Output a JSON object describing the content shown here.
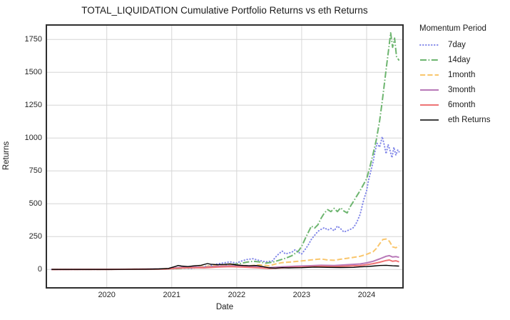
{
  "chart_data": {
    "type": "line",
    "title": "TOTAL_LIQUIDATION Cumulative Portfolio Returns vs eth Returns",
    "xlabel": "Date",
    "ylabel": "Returns",
    "xlim": [
      2019.07,
      2024.56
    ],
    "ylim": [
      -140,
      1860
    ],
    "x_ticks": [
      2020,
      2021,
      2022,
      2023,
      2024
    ],
    "y_ticks": [
      0,
      250,
      500,
      750,
      1000,
      1250,
      1500,
      1750
    ],
    "grid": true,
    "grid_color": "#d6d6d6",
    "spine_color": "#2e2e2e",
    "legend": {
      "title": "Momentum Period",
      "position": "right-outside"
    },
    "series": [
      {
        "name": "7day",
        "color": "#8086e8",
        "style": "dotted",
        "width": 2,
        "points": [
          [
            2019.15,
            0
          ],
          [
            2019.5,
            1
          ],
          [
            2020.0,
            1
          ],
          [
            2020.5,
            2
          ],
          [
            2020.8,
            3
          ],
          [
            2021.0,
            5
          ],
          [
            2021.15,
            12
          ],
          [
            2021.3,
            8
          ],
          [
            2021.45,
            18
          ],
          [
            2021.6,
            30
          ],
          [
            2021.7,
            42
          ],
          [
            2021.8,
            50
          ],
          [
            2021.9,
            58
          ],
          [
            2022.0,
            48
          ],
          [
            2022.05,
            60
          ],
          [
            2022.15,
            75
          ],
          [
            2022.25,
            82
          ],
          [
            2022.35,
            68
          ],
          [
            2022.45,
            58
          ],
          [
            2022.55,
            65
          ],
          [
            2022.6,
            95
          ],
          [
            2022.65,
            120
          ],
          [
            2022.7,
            140
          ],
          [
            2022.75,
            118
          ],
          [
            2022.85,
            132
          ],
          [
            2022.9,
            150
          ],
          [
            2022.95,
            130
          ],
          [
            2023.0,
            118
          ],
          [
            2023.05,
            150
          ],
          [
            2023.1,
            185
          ],
          [
            2023.15,
            230
          ],
          [
            2023.2,
            260
          ],
          [
            2023.25,
            290
          ],
          [
            2023.3,
            305
          ],
          [
            2023.35,
            318
          ],
          [
            2023.4,
            300
          ],
          [
            2023.45,
            312
          ],
          [
            2023.5,
            295
          ],
          [
            2023.55,
            330
          ],
          [
            2023.6,
            310
          ],
          [
            2023.65,
            285
          ],
          [
            2023.7,
            295
          ],
          [
            2023.75,
            305
          ],
          [
            2023.8,
            320
          ],
          [
            2023.85,
            360
          ],
          [
            2023.9,
            420
          ],
          [
            2023.95,
            520
          ],
          [
            2024.0,
            600
          ],
          [
            2024.03,
            680
          ],
          [
            2024.06,
            740
          ],
          [
            2024.1,
            820
          ],
          [
            2024.13,
            900
          ],
          [
            2024.16,
            960
          ],
          [
            2024.2,
            930
          ],
          [
            2024.24,
            1010
          ],
          [
            2024.27,
            950
          ],
          [
            2024.3,
            880
          ],
          [
            2024.33,
            950
          ],
          [
            2024.36,
            905
          ],
          [
            2024.39,
            850
          ],
          [
            2024.42,
            930
          ],
          [
            2024.45,
            870
          ],
          [
            2024.48,
            910
          ],
          [
            2024.5,
            895
          ]
        ]
      },
      {
        "name": "14day",
        "color": "#6db56f",
        "style": "dashdot",
        "width": 2,
        "points": [
          [
            2019.15,
            0
          ],
          [
            2019.5,
            1
          ],
          [
            2020.0,
            1
          ],
          [
            2020.5,
            2
          ],
          [
            2021.0,
            4
          ],
          [
            2021.2,
            10
          ],
          [
            2021.4,
            15
          ],
          [
            2021.6,
            22
          ],
          [
            2021.8,
            30
          ],
          [
            2021.95,
            38
          ],
          [
            2022.05,
            45
          ],
          [
            2022.15,
            55
          ],
          [
            2022.25,
            62
          ],
          [
            2022.35,
            58
          ],
          [
            2022.45,
            48
          ],
          [
            2022.55,
            55
          ],
          [
            2022.65,
            70
          ],
          [
            2022.75,
            85
          ],
          [
            2022.85,
            105
          ],
          [
            2022.95,
            140
          ],
          [
            2023.0,
            175
          ],
          [
            2023.05,
            230
          ],
          [
            2023.1,
            280
          ],
          [
            2023.15,
            330
          ],
          [
            2023.2,
            315
          ],
          [
            2023.25,
            340
          ],
          [
            2023.3,
            390
          ],
          [
            2023.35,
            430
          ],
          [
            2023.4,
            455
          ],
          [
            2023.45,
            440
          ],
          [
            2023.5,
            465
          ],
          [
            2023.55,
            440
          ],
          [
            2023.6,
            470
          ],
          [
            2023.65,
            445
          ],
          [
            2023.7,
            430
          ],
          [
            2023.75,
            480
          ],
          [
            2023.8,
            520
          ],
          [
            2023.85,
            560
          ],
          [
            2023.9,
            600
          ],
          [
            2023.95,
            645
          ],
          [
            2024.0,
            690
          ],
          [
            2024.05,
            780
          ],
          [
            2024.1,
            880
          ],
          [
            2024.15,
            990
          ],
          [
            2024.2,
            1130
          ],
          [
            2024.24,
            1280
          ],
          [
            2024.28,
            1440
          ],
          [
            2024.31,
            1560
          ],
          [
            2024.34,
            1680
          ],
          [
            2024.37,
            1800
          ],
          [
            2024.4,
            1690
          ],
          [
            2024.43,
            1760
          ],
          [
            2024.46,
            1620
          ],
          [
            2024.5,
            1590
          ]
        ]
      },
      {
        "name": "1month",
        "color": "#f9c66d",
        "style": "dashed",
        "width": 2,
        "points": [
          [
            2019.15,
            0
          ],
          [
            2020.0,
            1
          ],
          [
            2020.8,
            3
          ],
          [
            2021.1,
            12
          ],
          [
            2021.3,
            18
          ],
          [
            2021.5,
            22
          ],
          [
            2021.7,
            30
          ],
          [
            2021.9,
            38
          ],
          [
            2022.05,
            32
          ],
          [
            2022.2,
            28
          ],
          [
            2022.35,
            35
          ],
          [
            2022.5,
            28
          ],
          [
            2022.6,
            42
          ],
          [
            2022.7,
            52
          ],
          [
            2022.85,
            58
          ],
          [
            2023.0,
            65
          ],
          [
            2023.1,
            70
          ],
          [
            2023.2,
            76
          ],
          [
            2023.3,
            80
          ],
          [
            2023.4,
            72
          ],
          [
            2023.5,
            70
          ],
          [
            2023.6,
            78
          ],
          [
            2023.7,
            85
          ],
          [
            2023.8,
            92
          ],
          [
            2023.9,
            100
          ],
          [
            2024.0,
            115
          ],
          [
            2024.05,
            125
          ],
          [
            2024.1,
            135
          ],
          [
            2024.15,
            160
          ],
          [
            2024.2,
            195
          ],
          [
            2024.25,
            228
          ],
          [
            2024.3,
            232
          ],
          [
            2024.35,
            215
          ],
          [
            2024.4,
            172
          ],
          [
            2024.45,
            165
          ],
          [
            2024.5,
            182
          ]
        ]
      },
      {
        "name": "3month",
        "color": "#b878b8",
        "style": "solid",
        "width": 2,
        "points": [
          [
            2019.15,
            0
          ],
          [
            2020.0,
            1
          ],
          [
            2020.9,
            4
          ],
          [
            2021.1,
            14
          ],
          [
            2021.3,
            20
          ],
          [
            2021.5,
            16
          ],
          [
            2021.7,
            24
          ],
          [
            2021.9,
            28
          ],
          [
            2022.1,
            24
          ],
          [
            2022.3,
            20
          ],
          [
            2022.5,
            14
          ],
          [
            2022.7,
            20
          ],
          [
            2022.9,
            24
          ],
          [
            2023.1,
            28
          ],
          [
            2023.3,
            32
          ],
          [
            2023.5,
            30
          ],
          [
            2023.7,
            36
          ],
          [
            2023.9,
            42
          ],
          [
            2024.0,
            50
          ],
          [
            2024.1,
            62
          ],
          [
            2024.2,
            80
          ],
          [
            2024.3,
            100
          ],
          [
            2024.35,
            105
          ],
          [
            2024.4,
            95
          ],
          [
            2024.45,
            98
          ],
          [
            2024.5,
            92
          ]
        ]
      },
      {
        "name": "6month",
        "color": "#ee7374",
        "style": "solid",
        "width": 2,
        "points": [
          [
            2019.15,
            0
          ],
          [
            2020.0,
            1
          ],
          [
            2020.9,
            3
          ],
          [
            2021.1,
            10
          ],
          [
            2021.3,
            14
          ],
          [
            2021.5,
            12
          ],
          [
            2021.7,
            18
          ],
          [
            2021.9,
            22
          ],
          [
            2022.1,
            18
          ],
          [
            2022.3,
            14
          ],
          [
            2022.5,
            8
          ],
          [
            2022.7,
            12
          ],
          [
            2022.9,
            16
          ],
          [
            2023.1,
            20
          ],
          [
            2023.3,
            24
          ],
          [
            2023.5,
            22
          ],
          [
            2023.7,
            26
          ],
          [
            2023.9,
            30
          ],
          [
            2024.0,
            36
          ],
          [
            2024.1,
            44
          ],
          [
            2024.2,
            55
          ],
          [
            2024.3,
            68
          ],
          [
            2024.35,
            72
          ],
          [
            2024.4,
            62
          ],
          [
            2024.45,
            66
          ],
          [
            2024.5,
            58
          ]
        ]
      },
      {
        "name": "eth Returns",
        "color": "#000000",
        "style": "solid",
        "width": 1.4,
        "points": [
          [
            2019.15,
            0
          ],
          [
            2019.5,
            0
          ],
          [
            2020.0,
            0
          ],
          [
            2020.3,
            1
          ],
          [
            2020.6,
            2
          ],
          [
            2020.8,
            4
          ],
          [
            2020.95,
            8
          ],
          [
            2021.05,
            22
          ],
          [
            2021.1,
            30
          ],
          [
            2021.15,
            26
          ],
          [
            2021.25,
            22
          ],
          [
            2021.35,
            28
          ],
          [
            2021.45,
            32
          ],
          [
            2021.55,
            45
          ],
          [
            2021.6,
            40
          ],
          [
            2021.7,
            36
          ],
          [
            2021.8,
            38
          ],
          [
            2021.9,
            42
          ],
          [
            2022.0,
            34
          ],
          [
            2022.1,
            30
          ],
          [
            2022.2,
            28
          ],
          [
            2022.3,
            30
          ],
          [
            2022.4,
            22
          ],
          [
            2022.5,
            12
          ],
          [
            2022.6,
            10
          ],
          [
            2022.7,
            14
          ],
          [
            2022.8,
            12
          ],
          [
            2022.9,
            13
          ],
          [
            2023.0,
            14
          ],
          [
            2023.2,
            18
          ],
          [
            2023.4,
            16
          ],
          [
            2023.6,
            15
          ],
          [
            2023.8,
            16
          ],
          [
            2023.9,
            20
          ],
          [
            2024.0,
            22
          ],
          [
            2024.1,
            26
          ],
          [
            2024.2,
            30
          ],
          [
            2024.3,
            32
          ],
          [
            2024.4,
            28
          ],
          [
            2024.5,
            26
          ]
        ]
      }
    ]
  }
}
